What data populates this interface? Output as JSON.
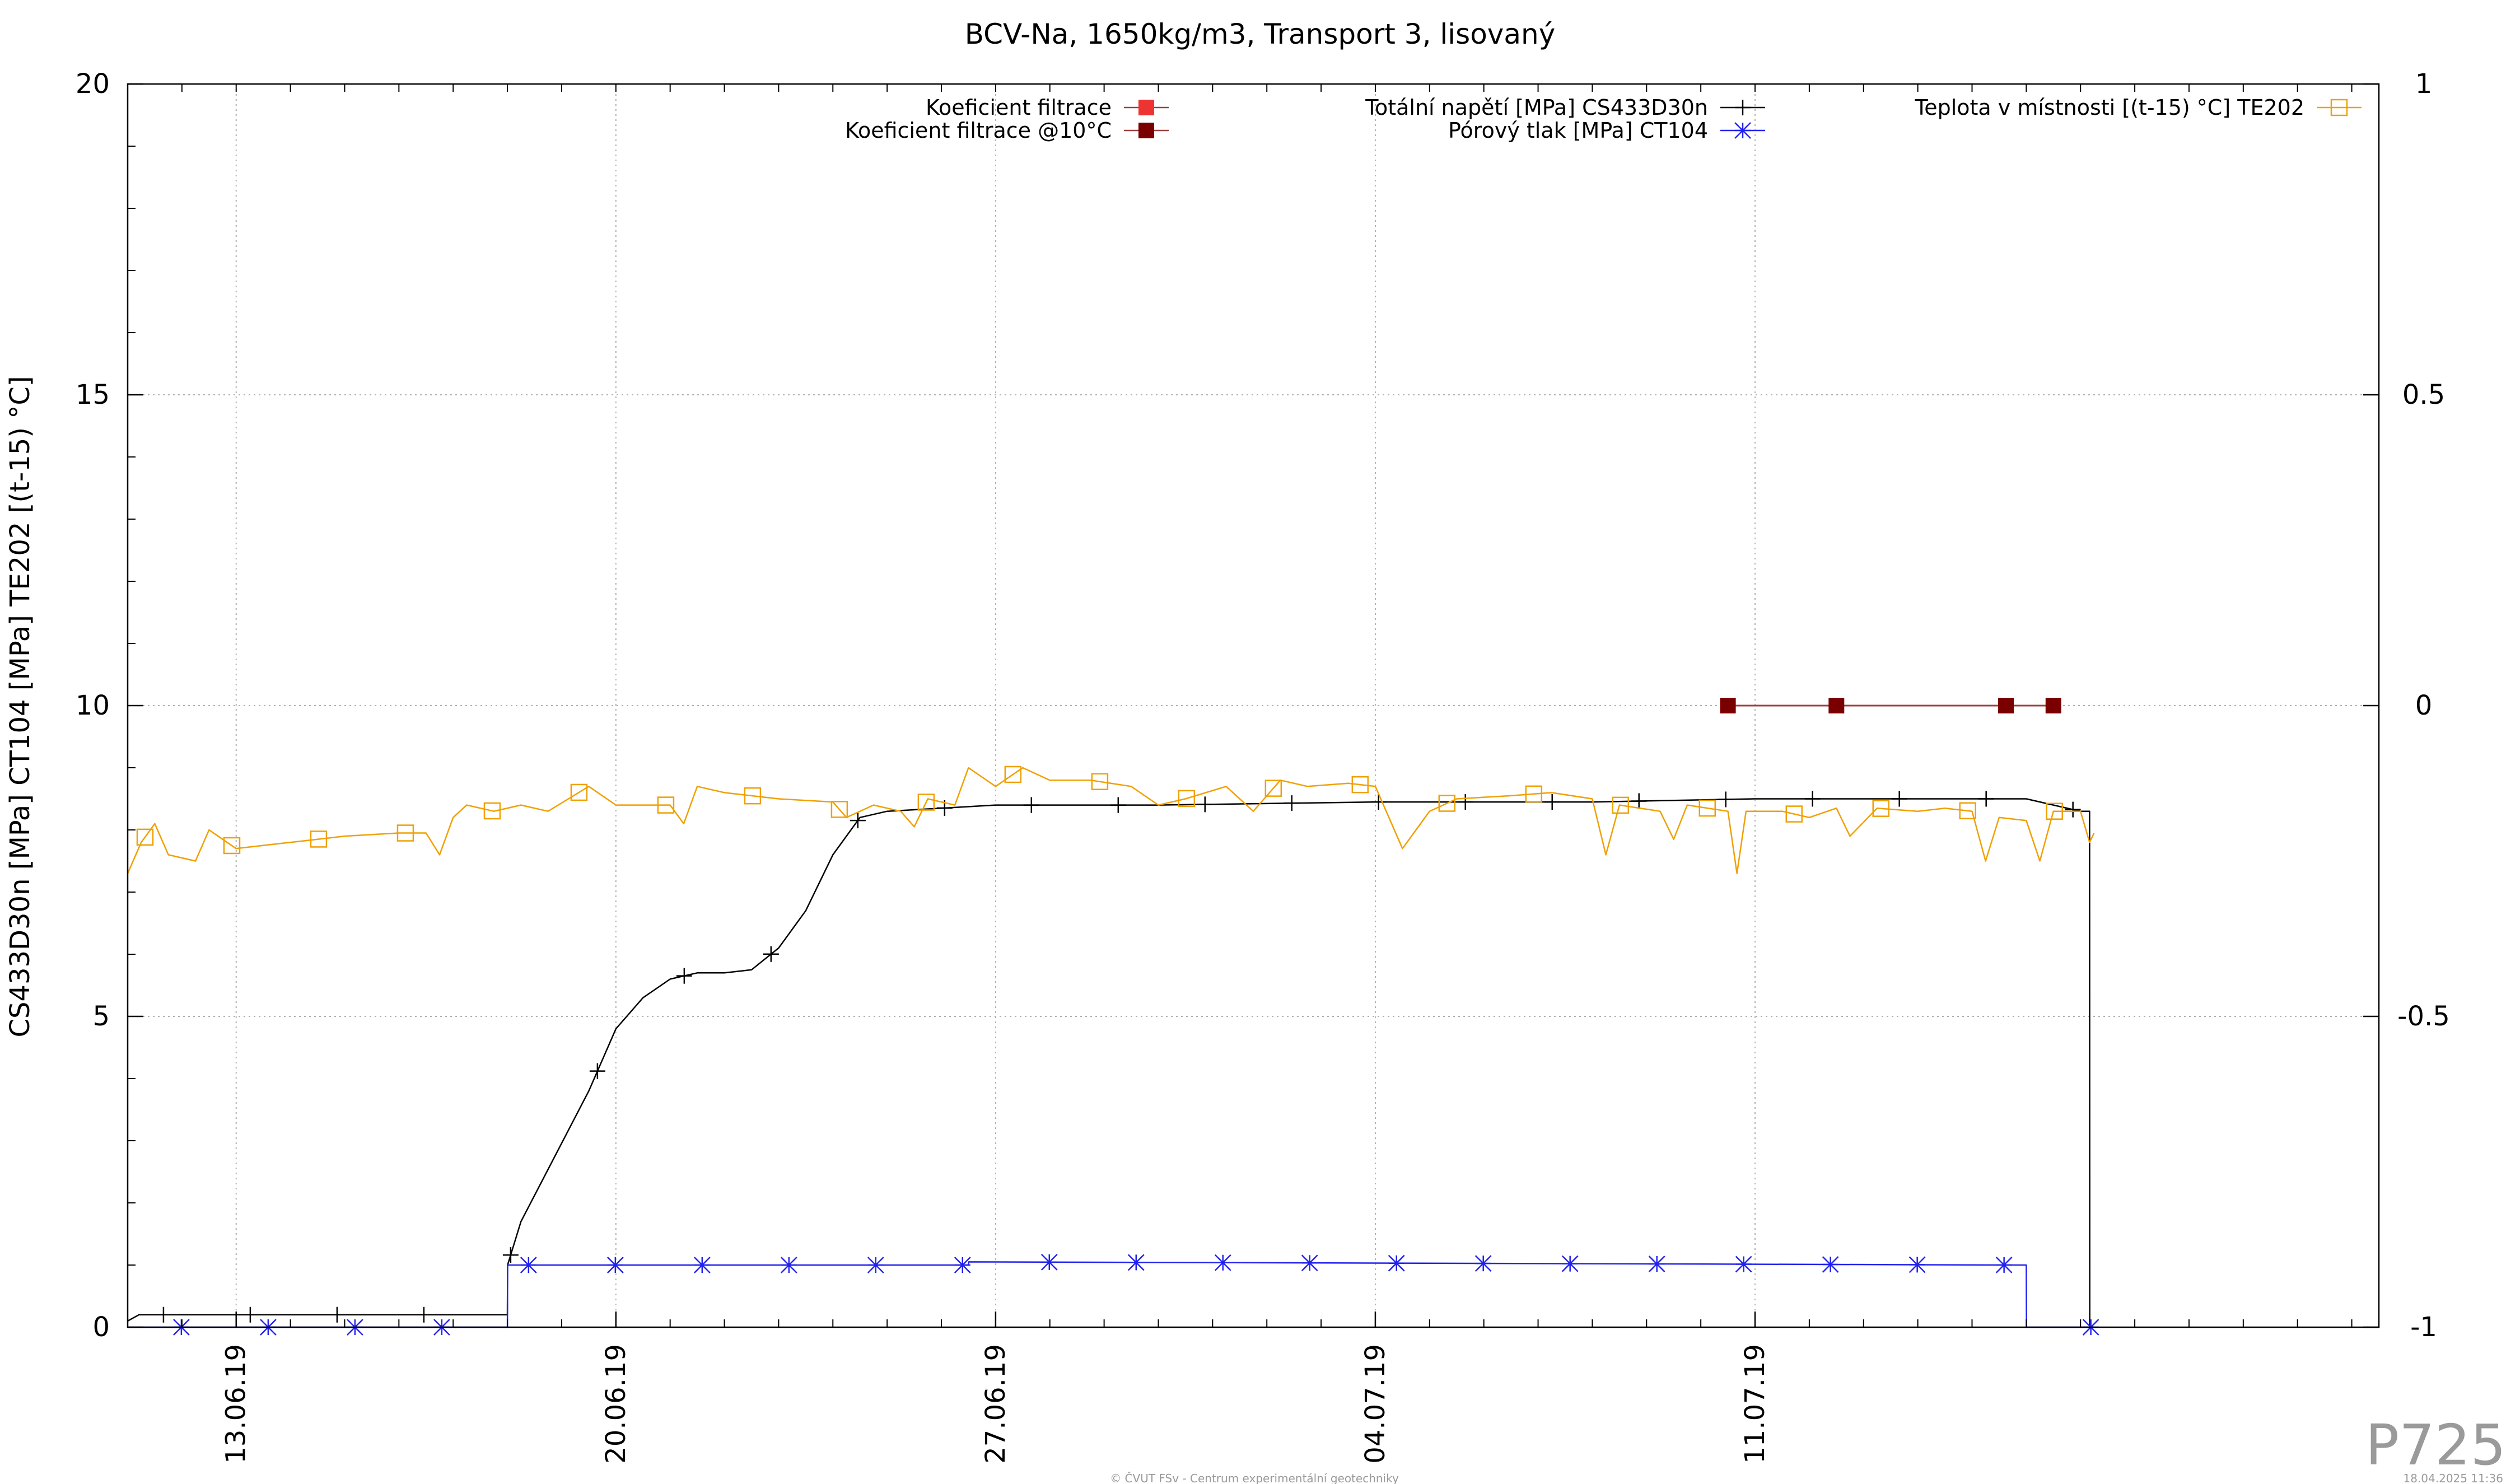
{
  "chart_data": {
    "type": "line",
    "title": "BCV-Na, 1650kg/m3, Transport 3, lisovaný",
    "ylabel": "CS433D30n [MPa] CT104 [MPa] TE202 [(t-15) °C]",
    "y2label": "",
    "ylim": [
      0,
      20
    ],
    "y2lim": [
      -1,
      1
    ],
    "xlim": [
      "2019-06-11T00:00",
      "2019-07-22T12:00"
    ],
    "grid": true,
    "legend_position": "top",
    "y_ticks": [
      "0",
      "5",
      "10",
      "15",
      "20"
    ],
    "y2_ticks": [
      "-1",
      "-0.5",
      "0",
      "0.5",
      "1"
    ],
    "x_ticks": [
      {
        "date": "2019-06-13",
        "label": "13.06.19"
      },
      {
        "date": "2019-06-20",
        "label": "20.06.19"
      },
      {
        "date": "2019-06-27",
        "label": "27.06.19"
      },
      {
        "date": "2019-07-04",
        "label": "04.07.19"
      },
      {
        "date": "2019-07-11",
        "label": "11.07.19"
      }
    ],
    "series": [
      {
        "name": "Koeficient filtrace",
        "axis": "y2",
        "color": "#ee3333",
        "marker": "filled-square",
        "points": []
      },
      {
        "name": "Koeficient filtrace @10°C",
        "axis": "y2",
        "color": "#7a0000",
        "marker": "filled-square",
        "points": [
          [
            "2019-07-10T12:00",
            0.0
          ],
          [
            "2019-07-12T12:00",
            0.0
          ],
          [
            "2019-07-15T15:00",
            0.0
          ],
          [
            "2019-07-16T12:00",
            0.0
          ]
        ]
      },
      {
        "name": "Totální napětí [MPa] CS433D30n",
        "axis": "y",
        "color": "#000000",
        "marker": "plus",
        "points": [
          [
            "2019-06-11T00:00",
            0.1
          ],
          [
            "2019-06-11T05:00",
            0.2
          ],
          [
            "2019-06-18T00:00",
            0.2
          ],
          [
            "2019-06-18T00:05",
            1.0
          ],
          [
            "2019-06-18T06:00",
            1.7
          ],
          [
            "2019-06-19T12:00",
            3.8
          ],
          [
            "2019-06-20T00:00",
            4.8
          ],
          [
            "2019-06-20T12:00",
            5.3
          ],
          [
            "2019-06-21T00:00",
            5.6
          ],
          [
            "2019-06-21T12:00",
            5.7
          ],
          [
            "2019-06-22T00:00",
            5.7
          ],
          [
            "2019-06-22T12:00",
            5.75
          ],
          [
            "2019-06-23T00:00",
            6.1
          ],
          [
            "2019-06-23T12:00",
            6.7
          ],
          [
            "2019-06-24T00:00",
            7.6
          ],
          [
            "2019-06-24T12:00",
            8.2
          ],
          [
            "2019-06-25T00:00",
            8.3
          ],
          [
            "2019-06-26T00:00",
            8.35
          ],
          [
            "2019-06-27T00:00",
            8.4
          ],
          [
            "2019-06-30T00:00",
            8.4
          ],
          [
            "2019-07-04T00:00",
            8.45
          ],
          [
            "2019-07-08T00:00",
            8.45
          ],
          [
            "2019-07-11T00:00",
            8.5
          ],
          [
            "2019-07-16T00:00",
            8.5
          ],
          [
            "2019-07-17T00:00",
            8.3
          ],
          [
            "2019-07-17T04:00",
            8.3
          ],
          [
            "2019-07-17T04:05",
            0.0
          ],
          [
            "2019-07-17T06:00",
            0.0
          ]
        ]
      },
      {
        "name": "Pórový tlak [MPa] CT104",
        "axis": "y",
        "color": "#2222ee",
        "marker": "star",
        "points": [
          [
            "2019-06-11T00:00",
            0.0
          ],
          [
            "2019-06-18T00:00",
            0.0
          ],
          [
            "2019-06-18T00:05",
            1.0
          ],
          [
            "2019-06-26T12:00",
            1.0
          ],
          [
            "2019-06-26T12:05",
            1.05
          ],
          [
            "2019-07-16T00:00",
            1.0
          ],
          [
            "2019-07-16T00:05",
            0.0
          ],
          [
            "2019-07-17T06:00",
            0.0
          ]
        ]
      },
      {
        "name": "Teplota v místnosti [(t-15) °C] TE202",
        "axis": "y",
        "color": "#f0a000",
        "marker": "open-square",
        "points": [
          [
            "2019-06-11T00:00",
            7.3
          ],
          [
            "2019-06-11T06:00",
            7.8
          ],
          [
            "2019-06-11T12:00",
            8.1
          ],
          [
            "2019-06-11T18:00",
            7.6
          ],
          [
            "2019-06-12T06:00",
            7.5
          ],
          [
            "2019-06-12T12:00",
            8.0
          ],
          [
            "2019-06-13T00:00",
            7.7
          ],
          [
            "2019-06-14T00:00",
            7.8
          ],
          [
            "2019-06-14T12:00",
            7.85
          ],
          [
            "2019-06-15T00:00",
            7.9
          ],
          [
            "2019-06-16T00:00",
            7.95
          ],
          [
            "2019-06-16T12:00",
            7.95
          ],
          [
            "2019-06-16T18:00",
            7.6
          ],
          [
            "2019-06-17T00:00",
            8.2
          ],
          [
            "2019-06-17T06:00",
            8.4
          ],
          [
            "2019-06-17T18:00",
            8.3
          ],
          [
            "2019-06-18T06:00",
            8.4
          ],
          [
            "2019-06-18T18:00",
            8.3
          ],
          [
            "2019-06-19T12:00",
            8.7
          ],
          [
            "2019-06-20T00:00",
            8.4
          ],
          [
            "2019-06-21T00:00",
            8.4
          ],
          [
            "2019-06-21T06:00",
            8.1
          ],
          [
            "2019-06-21T12:00",
            8.7
          ],
          [
            "2019-06-22T00:00",
            8.6
          ],
          [
            "2019-06-23T00:00",
            8.5
          ],
          [
            "2019-06-24T00:00",
            8.45
          ],
          [
            "2019-06-24T06:00",
            8.2
          ],
          [
            "2019-06-24T18:00",
            8.4
          ],
          [
            "2019-06-25T06:00",
            8.3
          ],
          [
            "2019-06-25T12:00",
            8.05
          ],
          [
            "2019-06-25T18:00",
            8.5
          ],
          [
            "2019-06-26T06:00",
            8.4
          ],
          [
            "2019-06-26T12:00",
            9.0
          ],
          [
            "2019-06-27T00:00",
            8.7
          ],
          [
            "2019-06-27T12:00",
            9.0
          ],
          [
            "2019-06-28T00:00",
            8.8
          ],
          [
            "2019-06-28T18:00",
            8.8
          ],
          [
            "2019-06-29T12:00",
            8.7
          ],
          [
            "2019-06-30T00:00",
            8.4
          ],
          [
            "2019-06-30T12:00",
            8.5
          ],
          [
            "2019-07-01T06:00",
            8.7
          ],
          [
            "2019-07-01T18:00",
            8.3
          ],
          [
            "2019-07-02T06:00",
            8.8
          ],
          [
            "2019-07-02T18:00",
            8.7
          ],
          [
            "2019-07-03T12:00",
            8.75
          ],
          [
            "2019-07-04T00:00",
            8.7
          ],
          [
            "2019-07-04T12:00",
            7.7
          ],
          [
            "2019-07-05T00:00",
            8.3
          ],
          [
            "2019-07-05T12:00",
            8.5
          ],
          [
            "2019-07-06T12:00",
            8.55
          ],
          [
            "2019-07-07T06:00",
            8.6
          ],
          [
            "2019-07-08T00:00",
            8.5
          ],
          [
            "2019-07-08T06:00",
            7.6
          ],
          [
            "2019-07-08T12:00",
            8.4
          ],
          [
            "2019-07-09T06:00",
            8.3
          ],
          [
            "2019-07-09T12:00",
            7.85
          ],
          [
            "2019-07-09T18:00",
            8.4
          ],
          [
            "2019-07-10T12:00",
            8.3
          ],
          [
            "2019-07-10T16:00",
            7.3
          ],
          [
            "2019-07-10T20:00",
            8.3
          ],
          [
            "2019-07-11T12:00",
            8.3
          ],
          [
            "2019-07-12T00:00",
            8.2
          ],
          [
            "2019-07-12T12:00",
            8.35
          ],
          [
            "2019-07-12T18:00",
            7.9
          ],
          [
            "2019-07-13T06:00",
            8.35
          ],
          [
            "2019-07-14T00:00",
            8.3
          ],
          [
            "2019-07-14T12:00",
            8.35
          ],
          [
            "2019-07-15T00:00",
            8.3
          ],
          [
            "2019-07-15T06:00",
            7.5
          ],
          [
            "2019-07-15T12:00",
            8.2
          ],
          [
            "2019-07-16T00:00",
            8.15
          ],
          [
            "2019-07-16T06:00",
            7.5
          ],
          [
            "2019-07-16T12:00",
            8.3
          ],
          [
            "2019-07-17T00:00",
            8.3
          ],
          [
            "2019-07-17T04:00",
            7.8
          ],
          [
            "2019-07-17T06:00",
            7.95
          ]
        ]
      }
    ]
  },
  "footer": {
    "credit": "© ČVUT FSv - Centrum experimentální geotechniky",
    "timestamp": "18.04.2025 11:36",
    "code": "P725"
  }
}
